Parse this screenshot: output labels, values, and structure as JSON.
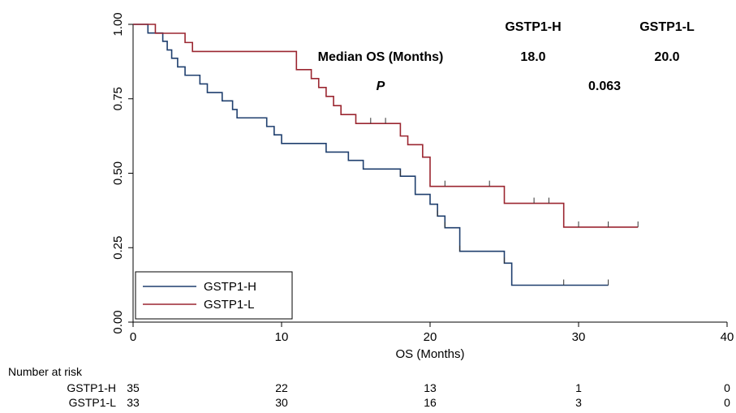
{
  "chart_data": {
    "type": "line",
    "subtype": "kaplan-meier-step",
    "xlabel": "OS (Months)",
    "ylabel": "",
    "xlim": [
      0,
      40
    ],
    "ylim": [
      0,
      1
    ],
    "x_ticks": [
      "0",
      "10",
      "20",
      "30",
      "40"
    ],
    "y_ticks": [
      "0.00",
      "0.25",
      "0.50",
      "0.75",
      "1.00"
    ],
    "grid": false,
    "legend": {
      "placement": "bottom-left",
      "entries": [
        "GSTP1-H",
        "GSTP1-L"
      ]
    },
    "series": [
      {
        "name": "GSTP1-H",
        "color": "#1f3f6e",
        "steps": [
          [
            0,
            1.0
          ],
          [
            1.0,
            0.971
          ],
          [
            2.0,
            0.943
          ],
          [
            2.3,
            0.914
          ],
          [
            2.6,
            0.886
          ],
          [
            3.0,
            0.857
          ],
          [
            3.5,
            0.829
          ],
          [
            4.5,
            0.8
          ],
          [
            5.0,
            0.771
          ],
          [
            6.0,
            0.743
          ],
          [
            6.7,
            0.714
          ],
          [
            7.0,
            0.686
          ],
          [
            9.0,
            0.657
          ],
          [
            9.5,
            0.629
          ],
          [
            10.0,
            0.6
          ],
          [
            13.0,
            0.571
          ],
          [
            14.5,
            0.543
          ],
          [
            15.5,
            0.514
          ],
          [
            18.0,
            0.49
          ],
          [
            19.0,
            0.429
          ],
          [
            20.0,
            0.396
          ],
          [
            20.5,
            0.356
          ],
          [
            21.0,
            0.317
          ],
          [
            22.0,
            0.238
          ],
          [
            25.0,
            0.198
          ],
          [
            25.5,
            0.124
          ]
        ],
        "end_x": 32,
        "censors": [
          [
            18,
            0.49
          ],
          [
            20.5,
            0.356
          ],
          [
            21.0,
            0.317
          ],
          [
            22.0,
            0.238
          ],
          [
            25.0,
            0.198
          ],
          [
            29.0,
            0.124
          ],
          [
            32.0,
            0.124
          ]
        ]
      },
      {
        "name": "GSTP1-L",
        "color": "#9b2630",
        "steps": [
          [
            0,
            1.0
          ],
          [
            1.5,
            0.97
          ],
          [
            3.5,
            0.939
          ],
          [
            4.0,
            0.909
          ],
          [
            11.0,
            0.848
          ],
          [
            12.0,
            0.818
          ],
          [
            12.5,
            0.788
          ],
          [
            13.0,
            0.758
          ],
          [
            13.5,
            0.727
          ],
          [
            14.0,
            0.697
          ],
          [
            15.0,
            0.667
          ],
          [
            18.0,
            0.625
          ],
          [
            18.5,
            0.596
          ],
          [
            19.5,
            0.554
          ],
          [
            20.0,
            0.456
          ],
          [
            25.0,
            0.399
          ],
          [
            29.0,
            0.319
          ]
        ],
        "end_x": 34,
        "censors": [
          [
            16,
            0.667
          ],
          [
            17,
            0.667
          ],
          [
            21,
            0.456
          ],
          [
            24,
            0.456
          ],
          [
            27,
            0.399
          ],
          [
            28,
            0.399
          ],
          [
            30,
            0.319
          ],
          [
            32,
            0.319
          ],
          [
            34,
            0.319
          ]
        ]
      }
    ],
    "annotations": {
      "col_h": "GSTP1-H",
      "col_l": "GSTP1-L",
      "median_label": "Median OS (Months)",
      "median_h": "18.0",
      "median_l": "20.0",
      "p_label": "P",
      "p_value": "0.063"
    },
    "risk_table": {
      "title": "Number at risk",
      "times": [
        0,
        10,
        20,
        30,
        40
      ],
      "rows": [
        {
          "label": "GSTP1-H",
          "values": [
            "35",
            "22",
            "13",
            "1",
            "0"
          ]
        },
        {
          "label": "GSTP1-L",
          "values": [
            "33",
            "30",
            "16",
            "3",
            "0"
          ]
        }
      ]
    }
  }
}
